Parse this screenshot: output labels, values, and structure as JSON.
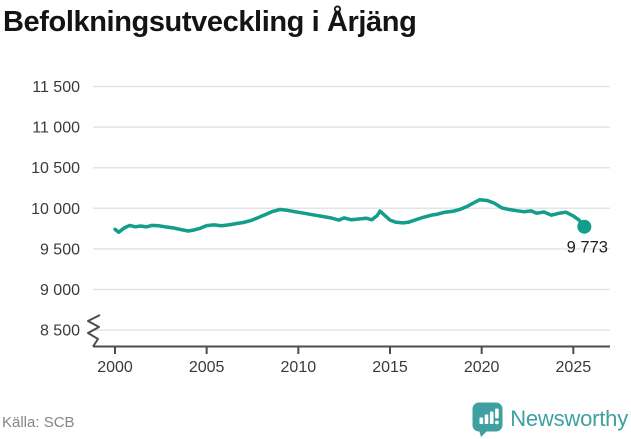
{
  "title": "Befolkningsutveckling i Årjäng",
  "footer": {
    "source": "Källa: SCB",
    "brand": "Newsworthy"
  },
  "colors": {
    "line": "#129D8C",
    "brand": "#3EA0A0",
    "grid": "#E4E4E4",
    "axis": "#4D4D4D",
    "tick_text": "#3A3A3A",
    "annotation_text": "#1F1F1F",
    "source_text": "#868686",
    "title_text": "#141414"
  },
  "chart_data": {
    "type": "line",
    "title": "Befolkningsutveckling i Årjäng",
    "source": "SCB",
    "legend": "none",
    "grid": "horizontal",
    "x_axis": {
      "ticks": [
        2000,
        2005,
        2010,
        2015,
        2020,
        2025
      ],
      "range": [
        1998.8,
        2027
      ],
      "label": ""
    },
    "y_axis": {
      "ticks": [
        {
          "label": "11 500",
          "value": 11500
        },
        {
          "label": "11 000",
          "value": 11000
        },
        {
          "label": "10 500",
          "value": 10500
        },
        {
          "label": "10 000",
          "value": 10000
        },
        {
          "label": "9 500",
          "value": 9500
        },
        {
          "label": "9 000",
          "value": 9000
        },
        {
          "label": "8 500",
          "value": 8500
        }
      ],
      "range_shown": [
        8500,
        11500
      ],
      "broken_axis": true,
      "label": ""
    },
    "series": [
      {
        "name": "Befolkning i Årjäng",
        "color": "#129D8C",
        "points": [
          [
            2000.0,
            9741
          ],
          [
            2000.2,
            9706
          ],
          [
            2000.5,
            9758
          ],
          [
            2000.8,
            9790
          ],
          [
            2001.1,
            9772
          ],
          [
            2001.4,
            9782
          ],
          [
            2001.7,
            9771
          ],
          [
            2002.0,
            9790
          ],
          [
            2002.4,
            9784
          ],
          [
            2002.8,
            9770
          ],
          [
            2003.2,
            9757
          ],
          [
            2003.6,
            9738
          ],
          [
            2004.0,
            9721
          ],
          [
            2004.3,
            9733
          ],
          [
            2004.6,
            9750
          ],
          [
            2005.0,
            9787
          ],
          [
            2005.4,
            9795
          ],
          [
            2005.8,
            9786
          ],
          [
            2006.2,
            9795
          ],
          [
            2006.6,
            9812
          ],
          [
            2007.0,
            9825
          ],
          [
            2007.4,
            9848
          ],
          [
            2007.8,
            9884
          ],
          [
            2008.2,
            9922
          ],
          [
            2008.6,
            9962
          ],
          [
            2009.0,
            9985
          ],
          [
            2009.4,
            9975
          ],
          [
            2009.8,
            9958
          ],
          [
            2010.3,
            9940
          ],
          [
            2010.8,
            9920
          ],
          [
            2011.3,
            9900
          ],
          [
            2011.8,
            9880
          ],
          [
            2012.2,
            9855
          ],
          [
            2012.5,
            9882
          ],
          [
            2012.9,
            9858
          ],
          [
            2013.3,
            9868
          ],
          [
            2013.7,
            9878
          ],
          [
            2014.0,
            9858
          ],
          [
            2014.3,
            9910
          ],
          [
            2014.45,
            9966
          ],
          [
            2014.7,
            9915
          ],
          [
            2015.0,
            9855
          ],
          [
            2015.3,
            9830
          ],
          [
            2015.7,
            9820
          ],
          [
            2016.0,
            9827
          ],
          [
            2016.4,
            9858
          ],
          [
            2016.8,
            9888
          ],
          [
            2017.2,
            9912
          ],
          [
            2017.6,
            9928
          ],
          [
            2018.0,
            9952
          ],
          [
            2018.4,
            9962
          ],
          [
            2018.8,
            9985
          ],
          [
            2019.2,
            10022
          ],
          [
            2019.6,
            10072
          ],
          [
            2019.9,
            10106
          ],
          [
            2020.3,
            10096
          ],
          [
            2020.7,
            10062
          ],
          [
            2021.1,
            10005
          ],
          [
            2021.5,
            9985
          ],
          [
            2021.9,
            9970
          ],
          [
            2022.3,
            9958
          ],
          [
            2022.7,
            9968
          ],
          [
            2023.0,
            9940
          ],
          [
            2023.4,
            9955
          ],
          [
            2023.8,
            9915
          ],
          [
            2024.2,
            9938
          ],
          [
            2024.6,
            9952
          ],
          [
            2025.0,
            9905
          ],
          [
            2025.3,
            9858
          ],
          [
            2025.6,
            9773
          ]
        ]
      }
    ],
    "end_point": {
      "x": 2025.6,
      "value": 9773,
      "label": "9 773"
    }
  }
}
